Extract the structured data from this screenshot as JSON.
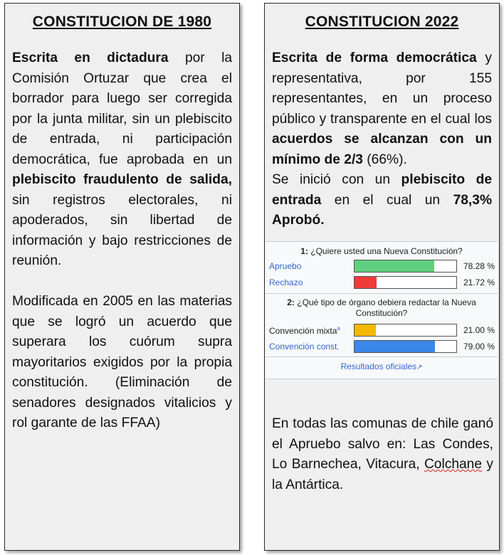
{
  "left": {
    "title": "CONSTITUCION DE 1980",
    "p1_bold1": "Escrita en dictadura",
    "p1_t1": " por la Comisión Ortuzar que crea el borrador para luego ser corregida por la junta militar, sin un plebiscito de entrada, ni participación democrática, fue aprobada en un ",
    "p1_bold2": "plebiscito fraudulento de salida,",
    "p1_t2": " sin registros electorales, ni apoderados, sin libertad de información y bajo restricciones de reunión.",
    "p2": "Modificada en 2005 en las materias que se logró un acuerdo que superara los cuórum supra mayoritarios exigidos por la propia constitución. (Eliminación de senadores designados vitalicios y rol garante de las FFAA)"
  },
  "right": {
    "title": "CONSTITUCION 2022",
    "p1_bold1": "Escrita de forma democrática",
    "p1_t1": " y representativa, por 155 representantes, en un proceso público y transparente en el cual los ",
    "p1_bold2": "acuerdos se alcanzan con un mínimo de 2/3",
    "p1_t2": " (66%).",
    "p2_t1": "Se inició con un ",
    "p2_bold1": "plebiscito de entrada",
    "p2_t2": " en el cual un ",
    "p2_bold2": "78,3% Aprobó.",
    "p3_t1": "En todas las comunas de chile ganó el Apruebo salvo en: Las Condes, Lo Barnechea, Vitacura, ",
    "p3_squiggle": "Colchane",
    "p3_t2": " y la Antártica."
  },
  "results": {
    "q1_num": "1:",
    "q1_text": " ¿Quiere usted una Nueva Constitución?",
    "q2_num": "2:",
    "q2_text": " ¿Qué tipo de órgano debiera redactar la Nueva Constitución?",
    "rows1": [
      {
        "label": "Apruebo",
        "pct": "78.28 %",
        "value": 78.28,
        "color": "#5fcf80"
      },
      {
        "label": "Rechazo",
        "pct": "21.72 %",
        "value": 21.72,
        "color": "#ee3b3b"
      }
    ],
    "rows2": [
      {
        "label": "Convención mixta",
        "sup": "a",
        "pct": "21.00 %",
        "value": 21.0,
        "color": "#f5b800"
      },
      {
        "label": "Convención const.",
        "pct": "79.00 %",
        "value": 79.0,
        "color": "#3a87e8"
      }
    ],
    "official": "Resultados oficiales",
    "official_icon": "external-link-icon"
  }
}
